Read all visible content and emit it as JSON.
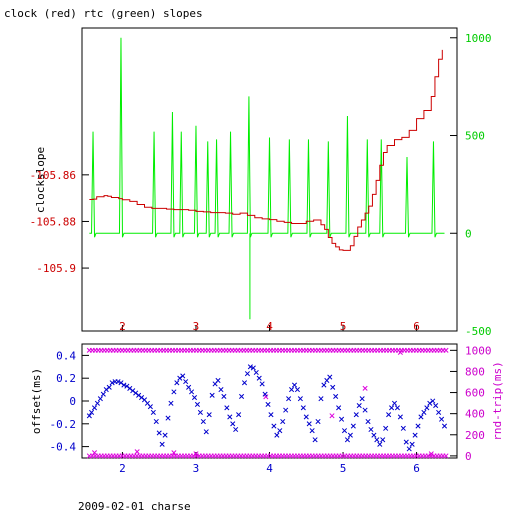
{
  "title": "clock (red) rtc (green) slopes",
  "footer": "2009-02-01 charse",
  "colors": {
    "red": "#cc0000",
    "green": "#00ee00",
    "blue": "#0000cc",
    "magenta": "#dd00dd",
    "axis": "#000000"
  },
  "chart_data": [
    {
      "type": "line",
      "xlim": [
        1.45,
        6.55
      ],
      "xticks": [
        2,
        3,
        4,
        5,
        6
      ],
      "ylabel_left": "clockslope",
      "ylim_left": [
        -105.927,
        -105.797
      ],
      "yticks_left": [
        -105.86,
        -105.88,
        -105.9
      ],
      "ylim_right": [
        -500,
        1050
      ],
      "yticks_right": [
        1000,
        500,
        0,
        -500
      ],
      "series": [
        {
          "name": "clock",
          "axis": "left",
          "x": [
            1.55,
            1.6,
            1.65,
            1.7,
            1.75,
            1.8,
            1.85,
            1.9,
            1.95,
            2.0,
            2.1,
            2.2,
            2.3,
            2.4,
            2.5,
            2.6,
            2.7,
            2.8,
            2.9,
            3.0,
            3.1,
            3.2,
            3.3,
            3.4,
            3.5,
            3.6,
            3.7,
            3.8,
            3.9,
            4.0,
            4.1,
            4.2,
            4.3,
            4.4,
            4.5,
            4.6,
            4.7,
            4.75,
            4.8,
            4.85,
            4.9,
            4.95,
            5.0,
            5.05,
            5.1,
            5.15,
            5.2,
            5.25,
            5.3,
            5.35,
            5.4,
            5.45,
            5.5,
            5.55,
            5.6,
            5.7,
            5.8,
            5.9,
            6.0,
            6.1,
            6.2,
            6.25,
            6.3,
            6.35
          ],
          "values": [
            -105.8706,
            -105.8704,
            -105.8694,
            -105.8694,
            -105.8689,
            -105.8692,
            -105.8697,
            -105.8697,
            -105.8702,
            -105.8707,
            -105.8714,
            -105.8727,
            -105.8739,
            -105.8744,
            -105.8744,
            -105.8747,
            -105.8749,
            -105.8749,
            -105.8752,
            -105.8757,
            -105.8759,
            -105.8762,
            -105.8762,
            -105.8764,
            -105.8769,
            -105.8764,
            -105.8774,
            -105.8784,
            -105.8789,
            -105.8792,
            -105.8799,
            -105.8804,
            -105.8809,
            -105.8809,
            -105.8799,
            -105.8794,
            -105.8814,
            -105.8834,
            -105.8869,
            -105.8894,
            -105.8909,
            -105.8922,
            -105.8924,
            -105.8924,
            -105.8904,
            -105.8864,
            -105.8824,
            -105.8794,
            -105.8764,
            -105.8734,
            -105.8684,
            -105.8624,
            -105.8559,
            -105.8504,
            -105.8474,
            -105.8449,
            -105.8439,
            -105.8409,
            -105.8359,
            -105.8324,
            -105.8264,
            -105.8179,
            -105.8104,
            -105.8064
          ]
        },
        {
          "name": "rtc",
          "axis": "right",
          "baseline": 0,
          "spike_x": [
            1.6,
            1.98,
            2.43,
            2.68,
            2.8,
            3.0,
            3.16,
            3.28,
            3.47,
            3.72,
            4.0,
            4.27,
            4.53,
            4.8,
            5.06,
            5.33,
            5.52,
            5.87,
            6.23
          ],
          "spike_values": [
            520,
            1000,
            520,
            620,
            520,
            550,
            470,
            480,
            520,
            700,
            490,
            480,
            480,
            470,
            600,
            480,
            480,
            390,
            470
          ],
          "dip_x": 3.72,
          "dip_value": -440
        }
      ]
    },
    {
      "type": "scatter",
      "xlim": [
        1.45,
        6.55
      ],
      "xticks": [
        2,
        3,
        4,
        5,
        6
      ],
      "ylabel_left": "offset(ms)",
      "ylim_left": [
        -0.5,
        0.5
      ],
      "yticks_left": [
        0.4,
        0.2,
        0,
        -0.2,
        -0.4
      ],
      "ylabel_right": "rnd-trip(ms)",
      "ylim_right": [
        -20,
        1060
      ],
      "yticks_right": [
        1000,
        800,
        600,
        400,
        200,
        0
      ],
      "series": [
        {
          "name": "offset",
          "marker": "x",
          "x": [
            1.55,
            1.58,
            1.62,
            1.66,
            1.7,
            1.74,
            1.78,
            1.82,
            1.86,
            1.9,
            1.94,
            1.98,
            2.02,
            2.06,
            2.1,
            2.14,
            2.18,
            2.22,
            2.26,
            2.3,
            2.34,
            2.38,
            2.42,
            2.46,
            2.5,
            2.54,
            2.58,
            2.62,
            2.66,
            2.7,
            2.74,
            2.78,
            2.82,
            2.86,
            2.9,
            2.94,
            2.98,
            3.02,
            3.06,
            3.1,
            3.14,
            3.18,
            3.22,
            3.26,
            3.3,
            3.34,
            3.38,
            3.42,
            3.46,
            3.5,
            3.54,
            3.58,
            3.62,
            3.66,
            3.7,
            3.74,
            3.78,
            3.82,
            3.86,
            3.9,
            3.94,
            3.98,
            4.02,
            4.06,
            4.1,
            4.14,
            4.18,
            4.22,
            4.26,
            4.3,
            4.34,
            4.38,
            4.42,
            4.46,
            4.5,
            4.54,
            4.58,
            4.62,
            4.66,
            4.7,
            4.74,
            4.78,
            4.82,
            4.86,
            4.9,
            4.94,
            4.98,
            5.02,
            5.06,
            5.1,
            5.14,
            5.18,
            5.22,
            5.26,
            5.3,
            5.34,
            5.38,
            5.42,
            5.46,
            5.5,
            5.54,
            5.58,
            5.62,
            5.66,
            5.7,
            5.74,
            5.78,
            5.82,
            5.86,
            5.9,
            5.94,
            5.98,
            6.02,
            6.06,
            6.1,
            6.14,
            6.18,
            6.22,
            6.26,
            6.3,
            6.34,
            6.38
          ],
          "values": [
            -0.13,
            -0.1,
            -0.06,
            -0.02,
            0.02,
            0.06,
            0.1,
            0.12,
            0.16,
            0.17,
            0.17,
            0.16,
            0.14,
            0.13,
            0.11,
            0.09,
            0.07,
            0.05,
            0.03,
            0.01,
            -0.02,
            -0.05,
            -0.1,
            -0.18,
            -0.28,
            -0.38,
            -0.3,
            -0.15,
            -0.02,
            0.08,
            0.16,
            0.2,
            0.22,
            0.17,
            0.12,
            0.08,
            0.03,
            -0.03,
            -0.1,
            -0.18,
            -0.27,
            -0.12,
            0.05,
            0.15,
            0.18,
            0.1,
            0.04,
            -0.06,
            -0.14,
            -0.2,
            -0.25,
            -0.12,
            0.04,
            0.16,
            0.24,
            0.3,
            0.29,
            0.25,
            0.2,
            0.15,
            0.06,
            -0.03,
            -0.12,
            -0.22,
            -0.3,
            -0.26,
            -0.18,
            -0.08,
            0.02,
            0.1,
            0.14,
            0.1,
            0.02,
            -0.06,
            -0.14,
            -0.2,
            -0.26,
            -0.34,
            -0.18,
            0.02,
            0.14,
            0.18,
            0.21,
            0.12,
            0.04,
            -0.06,
            -0.16,
            -0.26,
            -0.34,
            -0.3,
            -0.22,
            -0.12,
            -0.04,
            0.02,
            -0.08,
            -0.18,
            -0.25,
            -0.3,
            -0.34,
            -0.38,
            -0.34,
            -0.24,
            -0.12,
            -0.06,
            -0.02,
            -0.06,
            -0.14,
            -0.24,
            -0.36,
            -0.42,
            -0.38,
            -0.3,
            -0.22,
            -0.14,
            -0.1,
            -0.06,
            -0.02,
            0.0,
            -0.04,
            -0.1,
            -0.16,
            -0.22
          ]
        },
        {
          "name": "rnd-trip",
          "marker": "x",
          "x_start": 1.55,
          "x_end": 6.4,
          "count": 121,
          "values": [
            1000,
            0
          ],
          "extra_x": [
            1.62,
            2.2,
            2.7,
            3.0,
            3.95,
            4.85,
            5.3,
            5.78,
            6.2
          ],
          "extra_values": [
            30,
            40,
            30,
            20,
            560,
            380,
            640,
            980,
            20
          ]
        }
      ]
    }
  ]
}
